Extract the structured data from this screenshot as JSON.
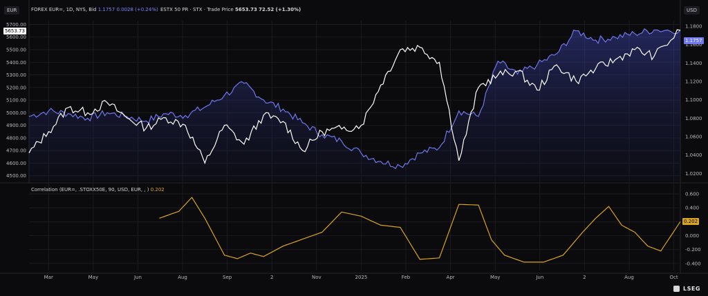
{
  "left_currency": "EUR",
  "right_currency": "USD",
  "header": {
    "forex_label": "FOREX EUR=, 1D, NYS, Bid",
    "forex_price": "1.1757",
    "forex_change": "0.0028 (+0.24%)",
    "index_label": "ESTX 50 PR · STX · Trade Price",
    "index_price": "5653.73",
    "index_change": "72.52 (+1.30%)"
  },
  "current_values": {
    "index_tag": "5653.73",
    "eur_tag": "1.1757",
    "correlation_tag": "0.202"
  },
  "correlation_header": {
    "label": "Correlation (EUR=, .STOXX50E, 90, USD, EUR, , )",
    "value": "0.202"
  },
  "brand": "LSEG",
  "colors": {
    "eurusd": "#7077ee",
    "stoxx": "#ffffff",
    "correlation": "#d9a51f",
    "grid": "#1b1b22"
  },
  "chart_data": [
    {
      "type": "line",
      "title": "",
      "x_axis_ticks": [
        "Mar",
        "May",
        "Jun",
        "Aug",
        "Sep",
        "2",
        "Nov",
        "2025",
        "Feb",
        "Apr",
        "May",
        "Jun",
        "2",
        "Aug",
        "Oct"
      ],
      "left_axis": {
        "ticks": [
          "5700.00",
          "5600.00",
          "5500.00",
          "5400.00",
          "5300.00",
          "5200.00",
          "5100.00",
          "5000.00",
          "4900.00",
          "4800.00",
          "4700.00",
          "4600.00",
          "4500.00"
        ],
        "ylim": [
          4460,
          5730
        ]
      },
      "right_axis": {
        "ticks": [
          "1.1800",
          "1.1600",
          "1.1400",
          "1.1200",
          "1.1000",
          "1.0800",
          "1.0600",
          "1.0400",
          "1.0200"
        ],
        "ylim": [
          1.012,
          1.186
        ]
      },
      "series": [
        {
          "name": "FOREX EUR=",
          "axis": "right",
          "fill": true,
          "x": [
            0,
            0.03,
            0.06,
            0.09,
            0.12,
            0.15,
            0.18,
            0.21,
            0.24,
            0.27,
            0.3,
            0.33,
            0.36,
            0.39,
            0.42,
            0.45,
            0.48,
            0.51,
            0.54,
            0.57,
            0.6,
            0.63,
            0.66,
            0.69,
            0.72,
            0.75,
            0.78,
            0.81,
            0.84,
            0.87,
            0.9,
            0.93,
            0.96,
            1.0
          ],
          "values": [
            1.082,
            1.088,
            1.085,
            1.08,
            1.086,
            1.082,
            1.077,
            1.085,
            1.083,
            1.092,
            1.105,
            1.118,
            1.1,
            1.09,
            1.075,
            1.062,
            1.055,
            1.042,
            1.033,
            1.028,
            1.042,
            1.048,
            1.088,
            1.082,
            1.142,
            1.128,
            1.138,
            1.15,
            1.175,
            1.165,
            1.168,
            1.172,
            1.176,
            1.1757
          ]
        },
        {
          "name": "ESTX 50 PR",
          "axis": "left",
          "fill": false,
          "x": [
            0,
            0.03,
            0.06,
            0.09,
            0.12,
            0.15,
            0.18,
            0.21,
            0.24,
            0.27,
            0.3,
            0.33,
            0.36,
            0.39,
            0.42,
            0.45,
            0.48,
            0.51,
            0.54,
            0.57,
            0.6,
            0.63,
            0.66,
            0.69,
            0.72,
            0.75,
            0.78,
            0.81,
            0.84,
            0.87,
            0.9,
            0.93,
            0.96,
            1.0
          ],
          "values": [
            4680,
            4850,
            5040,
            5000,
            5080,
            4960,
            4880,
            4960,
            4900,
            4600,
            4900,
            4750,
            4980,
            4930,
            4700,
            4850,
            4870,
            4900,
            5220,
            5500,
            5520,
            5400,
            4620,
            5200,
            5300,
            5330,
            5180,
            5380,
            5250,
            5350,
            5420,
            5500,
            5450,
            5653.73
          ]
        }
      ]
    },
    {
      "type": "line",
      "title": "Correlation (EUR=, .STOXX50E, 90, USD, EUR, , )",
      "right_axis": {
        "ticks": [
          "0.600",
          "0.400",
          "0.200",
          "0.000",
          "-0.200",
          "-0.400"
        ],
        "ylim": [
          -0.5,
          0.65
        ]
      },
      "series": [
        {
          "name": "Correlation",
          "x": [
            0.2,
            0.23,
            0.25,
            0.27,
            0.3,
            0.32,
            0.34,
            0.36,
            0.39,
            0.42,
            0.45,
            0.48,
            0.51,
            0.54,
            0.57,
            0.6,
            0.63,
            0.66,
            0.69,
            0.71,
            0.73,
            0.76,
            0.79,
            0.82,
            0.85,
            0.87,
            0.89,
            0.91,
            0.93,
            0.95,
            0.97,
            1.0
          ],
          "values": [
            0.25,
            0.35,
            0.55,
            0.25,
            -0.28,
            -0.33,
            -0.25,
            -0.3,
            -0.15,
            -0.05,
            0.05,
            0.34,
            0.28,
            0.15,
            0.12,
            -0.34,
            -0.32,
            0.45,
            0.44,
            -0.06,
            -0.28,
            -0.38,
            -0.38,
            -0.28,
            0.05,
            0.25,
            0.42,
            0.15,
            0.05,
            -0.15,
            -0.22,
            0.202
          ]
        }
      ]
    }
  ]
}
